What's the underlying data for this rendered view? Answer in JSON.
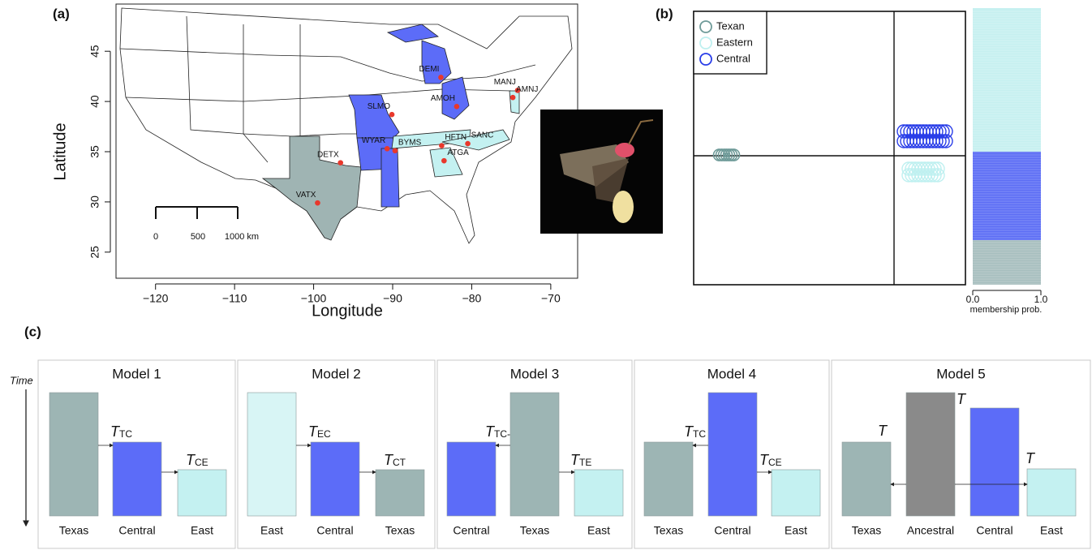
{
  "panel_a": {
    "label": "(a)",
    "type": "scatter",
    "x_label": "Longitude",
    "y_label": "Latitude",
    "xlim": [
      -125,
      -66.6
    ],
    "ylim": [
      22.4,
      49.7
    ],
    "xticks": [
      {
        "value": -120,
        "label": "−120"
      },
      {
        "value": -110,
        "label": "−110"
      },
      {
        "value": -100,
        "label": "−100"
      },
      {
        "value": -90,
        "label": "−90"
      },
      {
        "value": -80,
        "label": "−80"
      },
      {
        "value": -70,
        "label": "−70"
      }
    ],
    "yticks": [
      25,
      30,
      35,
      40,
      45
    ],
    "scale_labels": [
      "0",
      "500",
      "1000 km"
    ],
    "site_color": "#e8382c",
    "sites": [
      {
        "name": "DEMI",
        "lon": -83.9,
        "lat": 42.4
      },
      {
        "name": "AMOH",
        "lon": -81.9,
        "lat": 39.5
      },
      {
        "name": "MANJ",
        "lon": -74.2,
        "lat": 41.1
      },
      {
        "name": "AMNJ",
        "lon": -74.8,
        "lat": 40.4
      },
      {
        "name": "SLMO",
        "lon": -90.1,
        "lat": 38.7
      },
      {
        "name": "WYAR",
        "lon": -90.7,
        "lat": 35.3
      },
      {
        "name": "BYMS",
        "lon": -89.7,
        "lat": 35.1
      },
      {
        "name": "HFTN",
        "lon": -83.8,
        "lat": 35.6
      },
      {
        "name": "SANC",
        "lon": -80.5,
        "lat": 35.8
      },
      {
        "name": "ATGA",
        "lon": -83.5,
        "lat": 34.1
      },
      {
        "name": "DETX",
        "lon": -96.6,
        "lat": 33.9
      },
      {
        "name": "VATX",
        "lon": -99.5,
        "lat": 29.9
      }
    ]
  },
  "panel_b": {
    "label": "(b)",
    "legend": [
      {
        "name": "Texan",
        "color": "#6f9b99"
      },
      {
        "name": "Eastern",
        "color": "#bff0f0"
      },
      {
        "name": "Central",
        "color": "#2a3ee8"
      }
    ],
    "axis_ticks": [
      "0.0",
      "1.0"
    ],
    "axis_label": "membership prob."
  },
  "panel_c": {
    "label": "(c)",
    "time_label": "Time",
    "models": [
      {
        "title": "Model 1",
        "populations": [
          {
            "name": "Texas",
            "color": "#9db5b4"
          },
          {
            "name": "Central",
            "color": "#5c6cf8"
          },
          {
            "name": "East",
            "color": "#c4f1f1"
          }
        ],
        "splits": [
          {
            "symbol": "T",
            "sub": "TC"
          },
          {
            "symbol": "T",
            "sub": "CE"
          }
        ]
      },
      {
        "title": "Model 2",
        "populations": [
          {
            "name": "East",
            "color": "#d8f5f5"
          },
          {
            "name": "Central",
            "color": "#5c6cf8"
          },
          {
            "name": "Texas",
            "color": "#9db5b4"
          }
        ],
        "splits": [
          {
            "symbol": "T",
            "sub": "EC"
          },
          {
            "symbol": "T",
            "sub": "CT"
          }
        ]
      },
      {
        "title": "Model 3",
        "populations": [
          {
            "name": "Central",
            "color": "#5c6cf8"
          },
          {
            "name": "Texas",
            "color": "#9db5b4"
          },
          {
            "name": "East",
            "color": "#c4f1f1"
          }
        ],
        "splits": [
          {
            "symbol": "T",
            "sub": "TC-"
          },
          {
            "symbol": "T",
            "sub": "TE"
          }
        ]
      },
      {
        "title": "Model 4",
        "populations": [
          {
            "name": "Texas",
            "color": "#9db5b4"
          },
          {
            "name": "Central",
            "color": "#5c6cf8"
          },
          {
            "name": "East",
            "color": "#c4f1f1"
          }
        ],
        "splits": [
          {
            "symbol": "T",
            "sub": "TC"
          },
          {
            "symbol": "T",
            "sub": "CE"
          }
        ]
      },
      {
        "title": "Model 5",
        "populations": [
          {
            "name": "Texas",
            "color": "#9db5b4"
          },
          {
            "name": "Ancestral",
            "color": "#8a8a8a"
          },
          {
            "name": "Central",
            "color": "#5c6cf8"
          },
          {
            "name": "East",
            "color": "#c4f1f1"
          }
        ],
        "splits": [
          {
            "symbol": "T"
          },
          {
            "symbol": "T"
          },
          {
            "symbol": "T"
          }
        ]
      }
    ]
  }
}
